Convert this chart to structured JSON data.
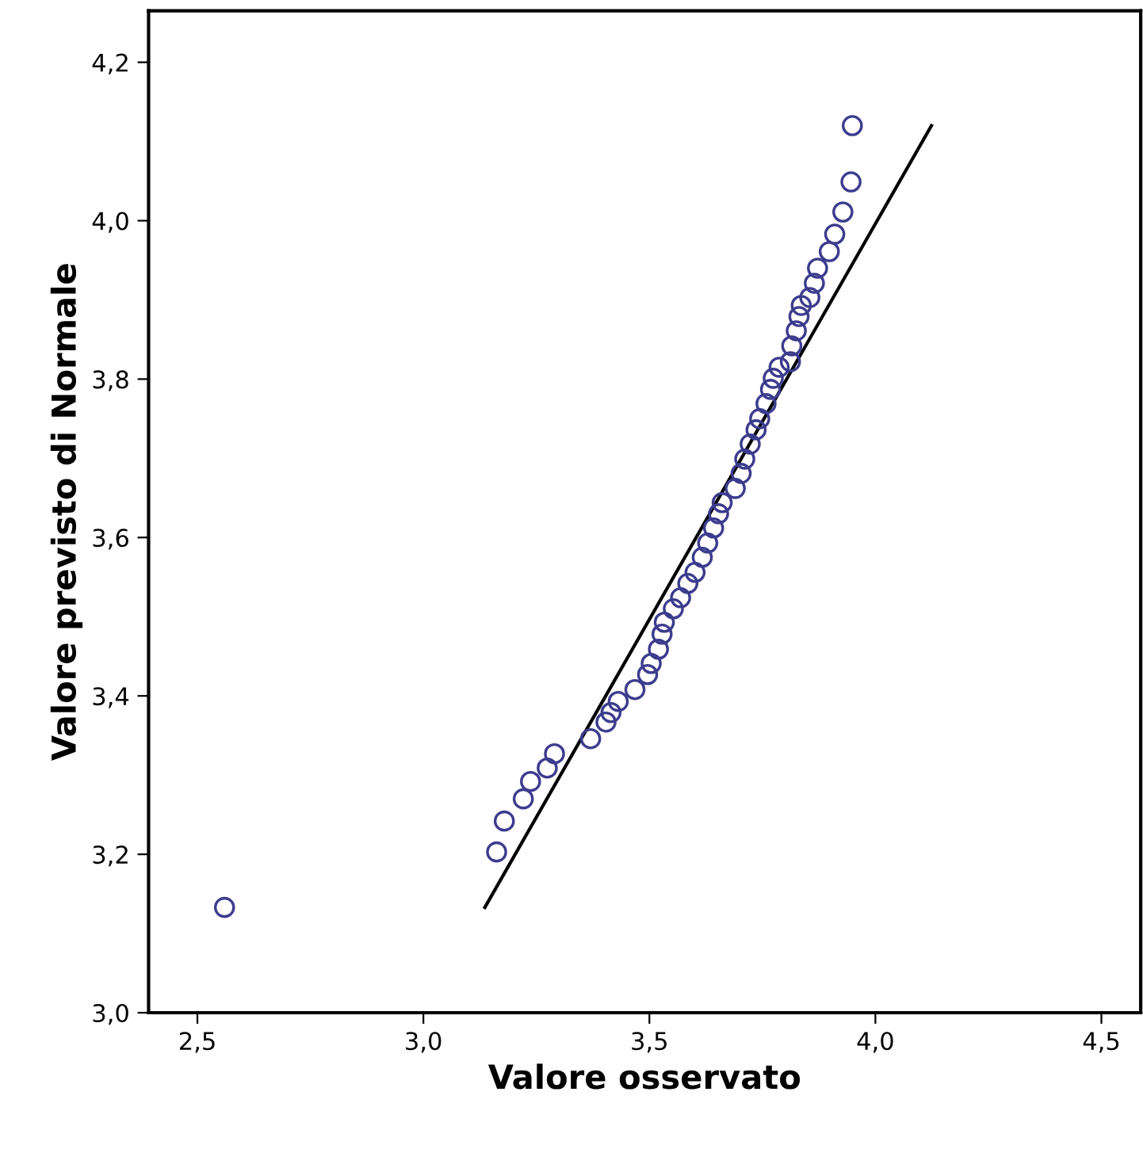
{
  "chart_data": {
    "type": "scatter",
    "xlabel": "Valore osservato",
    "ylabel": "Valore previsto di Normale",
    "xlim": [
      2.392,
      4.587
    ],
    "ylim": [
      3.0,
      4.265
    ],
    "xticks": [
      {
        "value": 2.5,
        "label": "2,5"
      },
      {
        "value": 3.0,
        "label": "3,0"
      },
      {
        "value": 3.5,
        "label": "3,5"
      },
      {
        "value": 4.0,
        "label": "4,0"
      },
      {
        "value": 4.5,
        "label": "4,5"
      }
    ],
    "yticks": [
      {
        "value": 3.0,
        "label": "3,0"
      },
      {
        "value": 3.2,
        "label": "3,2"
      },
      {
        "value": 3.4,
        "label": "3,4"
      },
      {
        "value": 3.6,
        "label": "3,6"
      },
      {
        "value": 3.8,
        "label": "3,8"
      },
      {
        "value": 4.0,
        "label": "4,0"
      },
      {
        "value": 4.2,
        "label": "4,2"
      }
    ],
    "grid": false,
    "series": [
      {
        "marker": "circle",
        "color": "#3c3c8e",
        "x": [
          2.56,
          3.162,
          3.179,
          3.221,
          3.237,
          3.274,
          3.29,
          3.37,
          3.404,
          3.415,
          3.431,
          3.468,
          3.496,
          3.504,
          3.52,
          3.528,
          3.533,
          3.553,
          3.569,
          3.585,
          3.601,
          3.617,
          3.629,
          3.642,
          3.653,
          3.661,
          3.69,
          3.703,
          3.711,
          3.723,
          3.736,
          3.744,
          3.758,
          3.768,
          3.774,
          3.787,
          3.812,
          3.815,
          3.825,
          3.831,
          3.836,
          3.855,
          3.865,
          3.872,
          3.898,
          3.91,
          3.928,
          3.946,
          3.949
        ],
        "values": [
          3.133,
          3.203,
          3.242,
          3.27,
          3.292,
          3.309,
          3.327,
          3.346,
          3.367,
          3.379,
          3.393,
          3.408,
          3.427,
          3.441,
          3.459,
          3.478,
          3.493,
          3.51,
          3.524,
          3.542,
          3.556,
          3.575,
          3.593,
          3.612,
          3.63,
          3.644,
          3.662,
          3.681,
          3.699,
          3.718,
          3.736,
          3.75,
          3.769,
          3.787,
          3.801,
          3.815,
          3.822,
          3.842,
          3.861,
          3.879,
          3.893,
          3.903,
          3.921,
          3.94,
          3.961,
          3.983,
          4.011,
          4.049,
          4.12
        ]
      },
      {
        "type": "line",
        "marker": "none",
        "color": "#000000",
        "x": [
          3.136,
          4.124
        ],
        "values": [
          3.133,
          4.12
        ]
      }
    ]
  }
}
